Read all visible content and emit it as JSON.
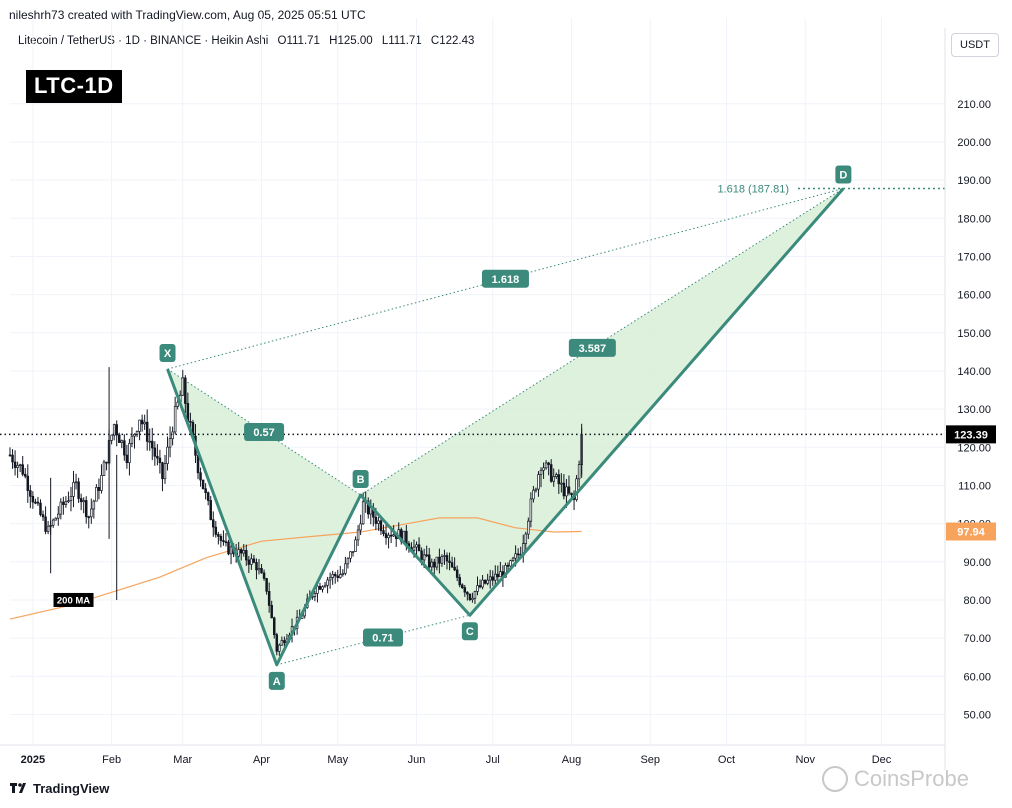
{
  "header": {
    "credit": "nileshrh73 created with TradingView.com, Aug 05, 2025 05:51 UTC",
    "symbol": "Litecoin / TetherUS · 1D · BINANCE · Heikin Ashi",
    "ohlc": {
      "open": "O111.71",
      "high": "H125.00",
      "low": "L111.71",
      "close": "C122.43"
    },
    "ticker_badge": "LTC-1D",
    "currency": "USDT"
  },
  "footer": {
    "brand": "TradingView",
    "watermark": "CoinsProbe"
  },
  "chart_data": {
    "type": "candlestick",
    "title": "",
    "y_axis": {
      "ticks": [
        50,
        60,
        70,
        80,
        90,
        100,
        110,
        120,
        130,
        140,
        150,
        160,
        170,
        180,
        190,
        200,
        210
      ],
      "tick_labels": [
        "50.00",
        "60.00",
        "70.00",
        "80.00",
        "90.00",
        "100.00",
        "110.00",
        "120.00",
        "130.00",
        "140.00",
        "150.00",
        "160.00",
        "170.00",
        "180.00",
        "190.00",
        "200.00",
        "210.00"
      ],
      "range": [
        42,
        222
      ],
      "position": "right"
    },
    "x_axis": {
      "range": [
        "2024-12-23",
        "2025-12-26"
      ],
      "ticks": [
        {
          "date": "2025-01-01",
          "label": "2025",
          "bold": true
        },
        {
          "date": "2025-02-01",
          "label": "Feb"
        },
        {
          "date": "2025-03-01",
          "label": "Mar"
        },
        {
          "date": "2025-04-01",
          "label": "Apr"
        },
        {
          "date": "2025-05-01",
          "label": "May"
        },
        {
          "date": "2025-06-01",
          "label": "Jun"
        },
        {
          "date": "2025-07-01",
          "label": "Jul"
        },
        {
          "date": "2025-08-01",
          "label": "Aug"
        },
        {
          "date": "2025-09-01",
          "label": "Sep"
        },
        {
          "date": "2025-10-01",
          "label": "Oct"
        },
        {
          "date": "2025-11-01",
          "label": "Nov"
        },
        {
          "date": "2025-12-01",
          "label": "Dec"
        }
      ]
    },
    "grid": true,
    "price_path": [
      [
        "2024-12-23",
        118
      ],
      [
        "2024-12-28",
        114
      ],
      [
        "2025-01-02",
        105
      ],
      [
        "2025-01-07",
        98
      ],
      [
        "2025-01-12",
        104
      ],
      [
        "2025-01-18",
        110
      ],
      [
        "2025-01-23",
        102
      ],
      [
        "2025-01-28",
        112
      ],
      [
        "2025-02-02",
        126
      ],
      [
        "2025-02-07",
        118
      ],
      [
        "2025-02-12",
        128
      ],
      [
        "2025-02-17",
        120
      ],
      [
        "2025-02-21",
        112
      ],
      [
        "2025-02-25",
        126
      ],
      [
        "2025-03-01",
        136
      ],
      [
        "2025-03-03",
        128
      ],
      [
        "2025-03-07",
        115
      ],
      [
        "2025-03-12",
        102
      ],
      [
        "2025-03-17",
        94
      ],
      [
        "2025-03-24",
        92
      ],
      [
        "2025-03-30",
        89
      ],
      [
        "2025-04-03",
        83
      ],
      [
        "2025-04-07",
        67
      ],
      [
        "2025-04-11",
        71
      ],
      [
        "2025-04-16",
        75
      ],
      [
        "2025-04-22",
        83
      ],
      [
        "2025-04-28",
        86
      ],
      [
        "2025-05-03",
        87
      ],
      [
        "2025-05-08",
        95
      ],
      [
        "2025-05-11",
        105
      ],
      [
        "2025-05-15",
        102
      ],
      [
        "2025-05-20",
        98
      ],
      [
        "2025-05-26",
        97
      ],
      [
        "2025-06-01",
        93
      ],
      [
        "2025-06-07",
        89
      ],
      [
        "2025-06-12",
        91
      ],
      [
        "2025-06-17",
        86
      ],
      [
        "2025-06-22",
        81
      ],
      [
        "2025-06-27",
        84
      ],
      [
        "2025-07-02",
        86
      ],
      [
        "2025-07-07",
        88
      ],
      [
        "2025-07-12",
        93
      ],
      [
        "2025-07-16",
        105
      ],
      [
        "2025-07-20",
        116
      ],
      [
        "2025-07-25",
        112
      ],
      [
        "2025-07-30",
        108
      ],
      [
        "2025-08-02",
        106
      ],
      [
        "2025-08-05",
        122.43
      ]
    ],
    "current_price": {
      "value": 123.39,
      "label": "123.39",
      "date": "2025-08-05"
    },
    "moving_average": {
      "name": "200 MA",
      "last_value_label": "97.94",
      "color": "#f7a35c",
      "points": [
        [
          "2024-12-23",
          75
        ],
        [
          "2025-01-15",
          78.5
        ],
        [
          "2025-02-01",
          82
        ],
        [
          "2025-02-20",
          86
        ],
        [
          "2025-03-10",
          91
        ],
        [
          "2025-04-01",
          95.4
        ],
        [
          "2025-04-20",
          96.6
        ],
        [
          "2025-05-10",
          97.8
        ],
        [
          "2025-05-25",
          99.6
        ],
        [
          "2025-06-10",
          101.5
        ],
        [
          "2025-06-25",
          101.5
        ],
        [
          "2025-07-10",
          98.9
        ],
        [
          "2025-07-25",
          97.8
        ],
        [
          "2025-08-05",
          97.94
        ]
      ]
    },
    "harmonic_pattern": {
      "points": [
        {
          "label": "X",
          "date": "2025-02-23",
          "value": 140.5
        },
        {
          "label": "A",
          "date": "2025-04-07",
          "value": 63
        },
        {
          "label": "B",
          "date": "2025-05-10",
          "value": 107.5
        },
        {
          "label": "C",
          "date": "2025-06-22",
          "value": 76
        },
        {
          "label": "D",
          "date": "2025-11-16",
          "value": 187.81
        }
      ],
      "ratios": [
        {
          "label": "0.57",
          "between": [
            "X",
            "B"
          ],
          "at": 0.5
        },
        {
          "label": "0.71",
          "between": [
            "A",
            "C"
          ],
          "at": 0.55
        },
        {
          "label": "3.587",
          "between": [
            "B",
            "D"
          ],
          "at": 0.48
        },
        {
          "label": "1.618",
          "between": [
            "X",
            "D"
          ],
          "at": 0.5
        }
      ],
      "target": {
        "label": "1.618 (187.81)",
        "value": 187.81
      },
      "fill_color": "#d7eed7",
      "line_color": "#3b8a7c"
    },
    "colors": {
      "up": "#089981",
      "down": "#f23645",
      "candle": "#131722",
      "price_label_bg": "#000000",
      "ma_label_bg": "#f7a35c"
    }
  }
}
